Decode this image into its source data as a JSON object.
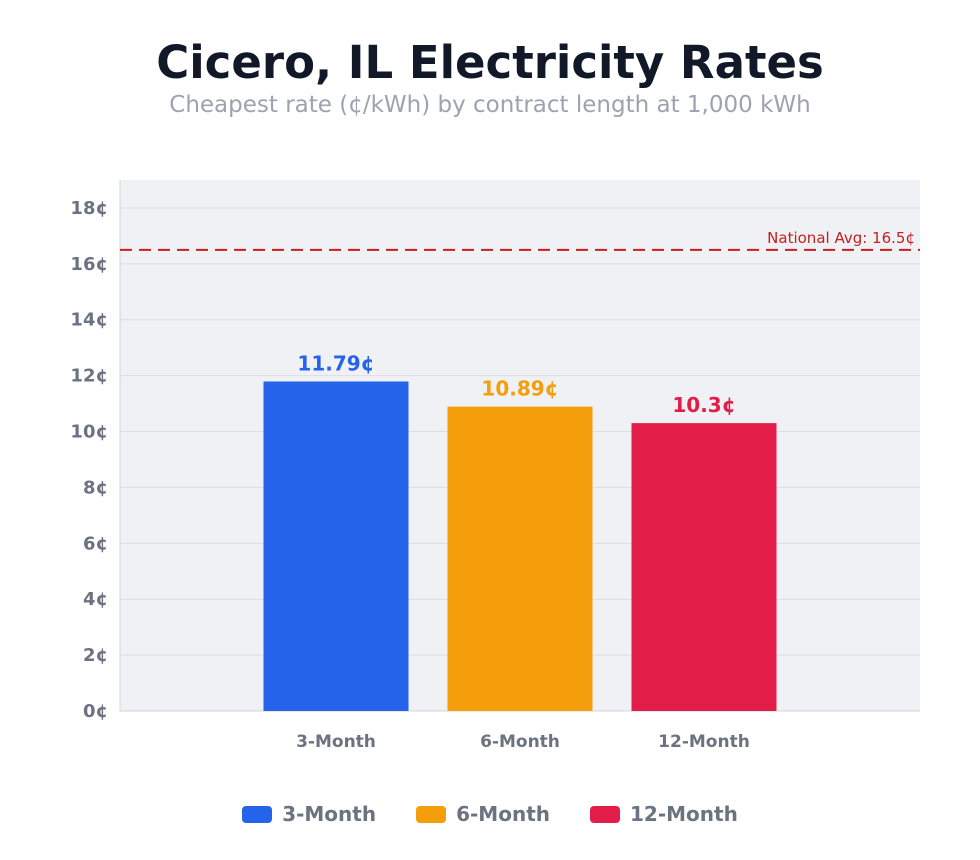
{
  "chart_data": {
    "type": "bar",
    "title": "Cicero, IL Electricity Rates",
    "subtitle": "Cheapest rate (¢/kWh) by contract length at 1,000 kWh",
    "categories": [
      "3-Month",
      "6-Month",
      "12-Month"
    ],
    "values": [
      11.79,
      10.89,
      10.3
    ],
    "value_labels": [
      "11.79¢",
      "10.89¢",
      "10.3¢"
    ],
    "colors": [
      "#2563eb",
      "#f59e0b",
      "#e11d48"
    ],
    "ylim": [
      0,
      19
    ],
    "yticks": [
      0,
      2,
      4,
      6,
      8,
      10,
      12,
      14,
      16,
      18
    ],
    "ytick_labels": [
      "0¢",
      "2¢",
      "4¢",
      "6¢",
      "8¢",
      "10¢",
      "12¢",
      "14¢",
      "16¢",
      "18¢"
    ],
    "grid": true,
    "reference_line": {
      "value": 16.5,
      "label": "National Avg: 16.5¢",
      "color": "#c81e1e",
      "style": "dashed"
    },
    "legend": {
      "placement": "bottom",
      "entries": [
        {
          "label": "3-Month",
          "color": "#2563eb"
        },
        {
          "label": "6-Month",
          "color": "#f59e0b"
        },
        {
          "label": "12-Month",
          "color": "#e11d48"
        }
      ]
    }
  }
}
